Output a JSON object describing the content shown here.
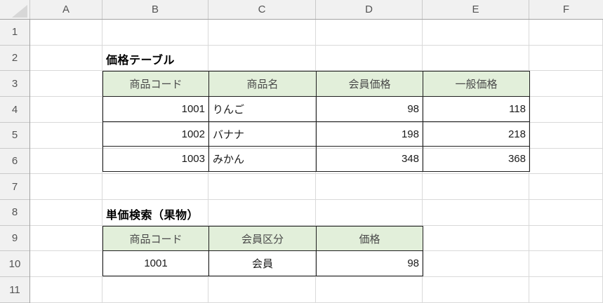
{
  "colors": {
    "table_header_fill": "#e2efda",
    "grid_line": "#d9d9d9",
    "chrome_fill": "#f1f1f1",
    "chrome_border": "#a3a3a3",
    "chrome_separator": "#c9c9c9",
    "chrome_text": "#545454",
    "table_border": "#1f1f1f",
    "title_color": "#000000",
    "data_color": "#1a1a1a",
    "header_text_color": "#4a4a4a"
  },
  "sheet": {
    "column_headers": [
      "A",
      "B",
      "C",
      "D",
      "E",
      "F"
    ],
    "row_headers": [
      "1",
      "2",
      "3",
      "4",
      "5",
      "6",
      "7",
      "8",
      "9",
      "10",
      "11"
    ]
  },
  "table1": {
    "title": "価格テーブル",
    "headers": [
      "商品コード",
      "商品名",
      "会員価格",
      "一般価格"
    ],
    "rows": [
      [
        "1001",
        "りんご",
        "98",
        "118"
      ],
      [
        "1002",
        "バナナ",
        "198",
        "218"
      ],
      [
        "1003",
        "みかん",
        "348",
        "368"
      ]
    ]
  },
  "table2": {
    "title": "単価検索（果物）",
    "headers": [
      "商品コード",
      "会員区分",
      "価格"
    ],
    "rows": [
      [
        "1001",
        "会員",
        "98"
      ]
    ]
  }
}
